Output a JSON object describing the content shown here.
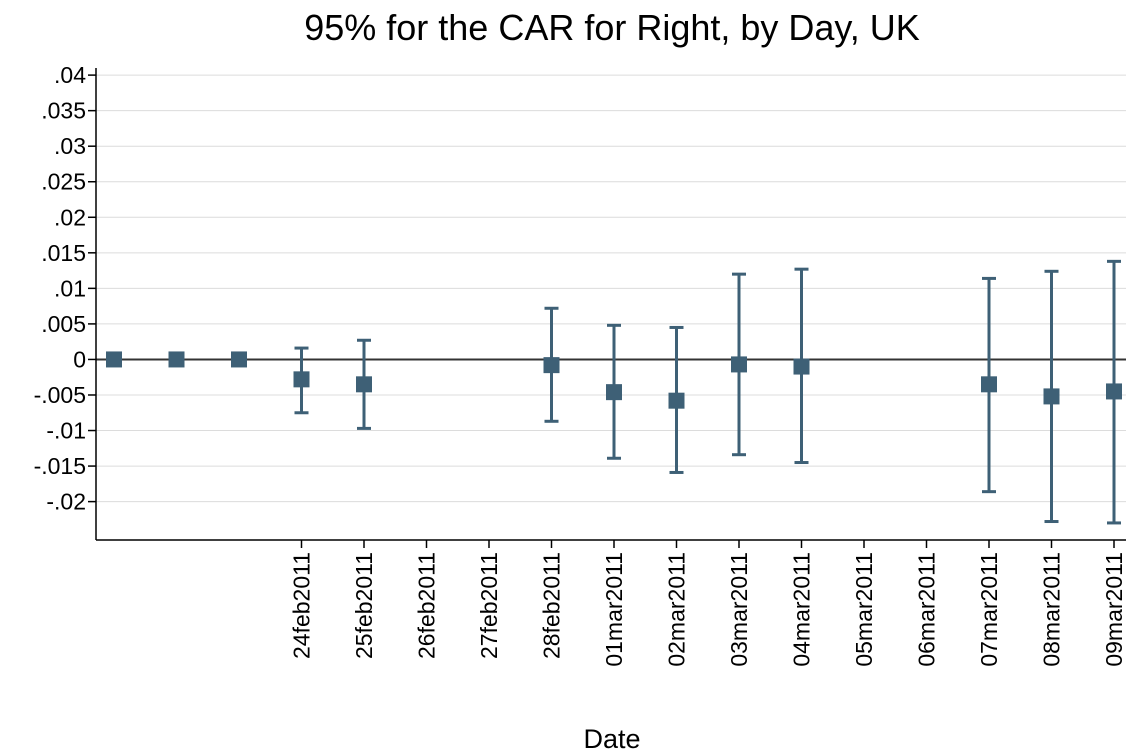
{
  "chart_data": {
    "type": "errorbar",
    "title": "95% for the CAR for Right, by Day, UK",
    "xlabel": "Date",
    "categories": [
      null,
      null,
      null,
      "24feb2011",
      "25feb2011",
      "26feb2011",
      "27feb2011",
      "28feb2011",
      "01mar2011",
      "02mar2011",
      "03mar2011",
      "04mar2011",
      "05mar2011",
      "06mar2011",
      "07mar2011",
      "08mar2011",
      "09mar2011"
    ],
    "series": [
      {
        "color": "#3e6076",
        "values": [
          0,
          0,
          0,
          -0.0028,
          -0.0035,
          null,
          null,
          -0.0008,
          -0.0046,
          -0.0058,
          -0.0007,
          -0.001,
          null,
          null,
          -0.0035,
          -0.0052,
          -0.0045
        ],
        "lower": [
          null,
          null,
          null,
          -0.0075,
          -0.0097,
          null,
          null,
          -0.0087,
          -0.0139,
          -0.0159,
          -0.0134,
          -0.0145,
          null,
          null,
          -0.0186,
          -0.0228,
          -0.023
        ],
        "upper": [
          null,
          null,
          null,
          0.0016,
          0.0027,
          null,
          null,
          0.0072,
          0.0048,
          0.0045,
          0.012,
          0.0127,
          null,
          null,
          0.0114,
          0.0124,
          0.0138
        ]
      }
    ],
    "ylim": [
      -0.0254,
      0.041
    ],
    "yticks": [
      {
        "value": 0.04,
        "label": ".04"
      },
      {
        "value": 0.035,
        "label": ".035"
      },
      {
        "value": 0.03,
        "label": ".03"
      },
      {
        "value": 0.025,
        "label": ".025"
      },
      {
        "value": 0.02,
        "label": ".02"
      },
      {
        "value": 0.015,
        "label": ".015"
      },
      {
        "value": 0.01,
        "label": ".01"
      },
      {
        "value": 0.005,
        "label": ".005"
      },
      0,
      {
        "value": -0.005,
        "label": "-.005"
      },
      {
        "value": -0.01,
        "label": "-.01"
      },
      {
        "value": -0.015,
        "label": "-.015"
      },
      {
        "value": -0.02,
        "label": "-.02"
      }
    ],
    "grid": true,
    "reference_line": 0
  }
}
